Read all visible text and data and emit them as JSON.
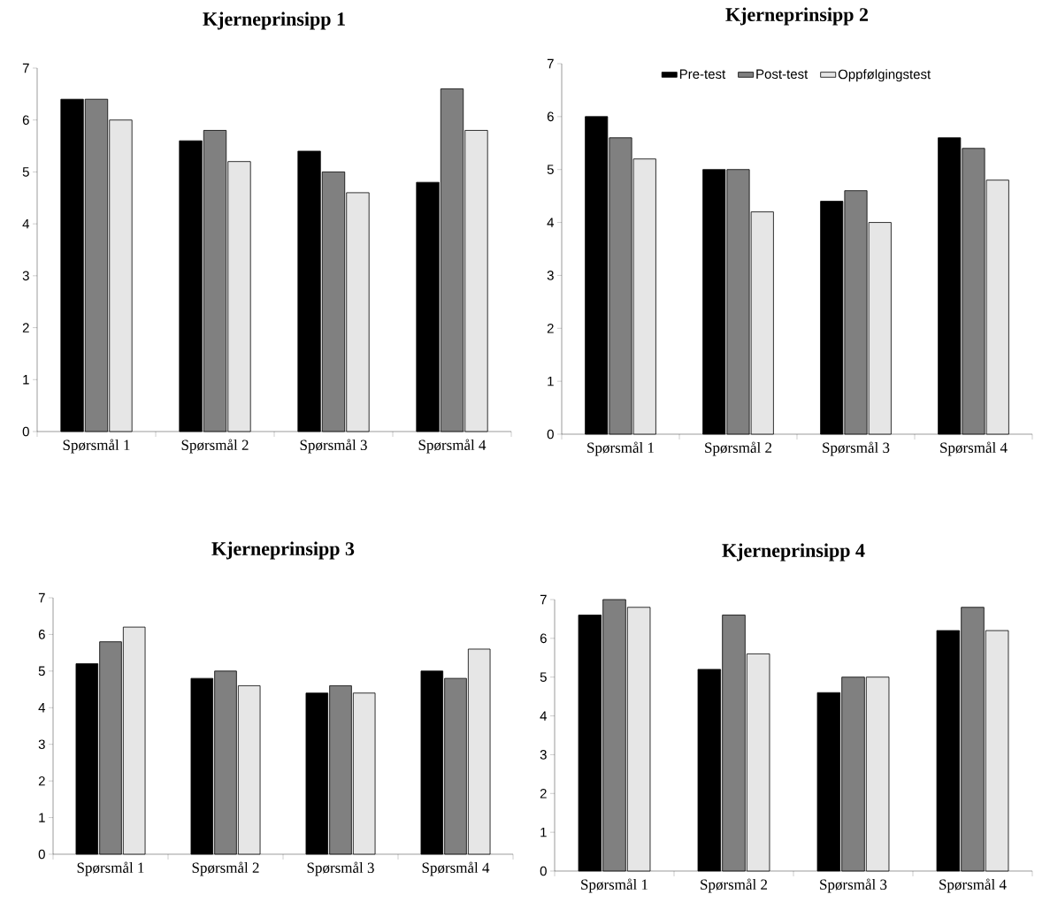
{
  "chart_data": [
    {
      "type": "bar",
      "title": "Kjerneprinsipp 1",
      "categories": [
        "Spørsmål 1",
        "Spørsmål 2",
        "Spørsmål 3",
        "Spørsmål 4"
      ],
      "ylim": [
        0,
        7
      ],
      "yticks": [
        0,
        1,
        2,
        3,
        4,
        5,
        6,
        7
      ],
      "series": [
        {
          "color": "#000000",
          "values": [
            6.4,
            5.6,
            5.4,
            4.8
          ]
        },
        {
          "color": "#808080",
          "values": [
            6.4,
            5.8,
            5.0,
            6.6
          ]
        },
        {
          "color": "#e6e6e6",
          "values": [
            6.0,
            5.2,
            4.6,
            5.8
          ]
        }
      ]
    },
    {
      "type": "bar",
      "title": "Kjerneprinsipp 2",
      "categories": [
        "Spørsmål 1",
        "Spørsmål 2",
        "Spørsmål 3",
        "Spørsmål 4"
      ],
      "ylim": [
        0,
        7
      ],
      "yticks": [
        0,
        1,
        2,
        3,
        4,
        5,
        6,
        7
      ],
      "legend": "top",
      "series": [
        {
          "name": "Pre-test",
          "color": "#000000",
          "values": [
            6.0,
            5.0,
            4.4,
            5.6
          ]
        },
        {
          "name": "Post-test",
          "color": "#808080",
          "values": [
            5.6,
            5.0,
            4.6,
            5.4
          ]
        },
        {
          "name": "Oppfølgingstest",
          "color": "#e6e6e6",
          "values": [
            5.2,
            4.2,
            4.0,
            4.8
          ]
        }
      ]
    },
    {
      "type": "bar",
      "title": "Kjerneprinsipp 3",
      "categories": [
        "Spørsmål 1",
        "Spørsmål 2",
        "Spørsmål 3",
        "Spørsmål 4"
      ],
      "ylim": [
        0,
        7
      ],
      "yticks": [
        0,
        1,
        2,
        3,
        4,
        5,
        6,
        7
      ],
      "series": [
        {
          "color": "#000000",
          "values": [
            5.2,
            4.8,
            4.4,
            5.0
          ]
        },
        {
          "color": "#808080",
          "values": [
            5.8,
            5.0,
            4.6,
            4.8
          ]
        },
        {
          "color": "#e6e6e6",
          "values": [
            6.2,
            4.6,
            4.4,
            5.6
          ]
        }
      ]
    },
    {
      "type": "bar",
      "title": "Kjerneprinsipp 4",
      "categories": [
        "Spørsmål 1",
        "Spørsmål 2",
        "Spørsmål 3",
        "Spørsmål 4"
      ],
      "ylim": [
        0,
        7
      ],
      "yticks": [
        0,
        1,
        2,
        3,
        4,
        5,
        6,
        7
      ],
      "series": [
        {
          "color": "#000000",
          "values": [
            6.6,
            5.2,
            4.6,
            6.2
          ]
        },
        {
          "color": "#808080",
          "values": [
            7.0,
            6.6,
            5.0,
            6.8
          ]
        },
        {
          "color": "#e6e6e6",
          "values": [
            6.8,
            5.6,
            5.0,
            6.2
          ]
        }
      ]
    }
  ]
}
